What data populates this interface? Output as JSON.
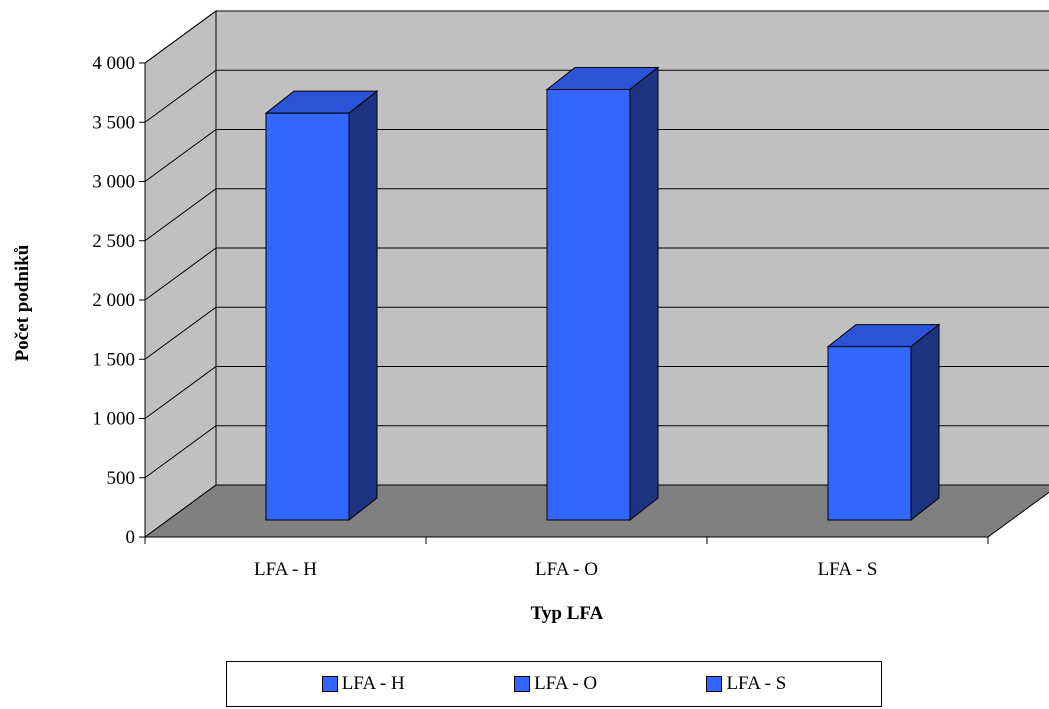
{
  "chart_data": {
    "type": "bar",
    "title": "",
    "xlabel": "Typ LFA",
    "ylabel": "Počet podniků",
    "categories": [
      "LFA - H",
      "LFA - O",
      "LFA - S"
    ],
    "values": [
      3450,
      3650,
      1480
    ],
    "ylim": [
      0,
      4000
    ],
    "yticks": [
      0,
      500,
      1000,
      1500,
      2000,
      2500,
      3000,
      3500,
      4000
    ],
    "ytick_labels": [
      "0",
      "500",
      "1 000",
      "1 500",
      "2 000",
      "2 500",
      "3 000",
      "3 500",
      "4 000"
    ],
    "grid": true,
    "legend": {
      "placement": "bottom",
      "entries": [
        "LFA - H",
        "LFA - O",
        "LFA - S"
      ]
    },
    "colors": {
      "bar_front": "#3366ff",
      "bar_top": "#2a53d6",
      "bar_side": "#1d3480",
      "wall": "#c0c0c0",
      "floor": "#808080"
    }
  }
}
